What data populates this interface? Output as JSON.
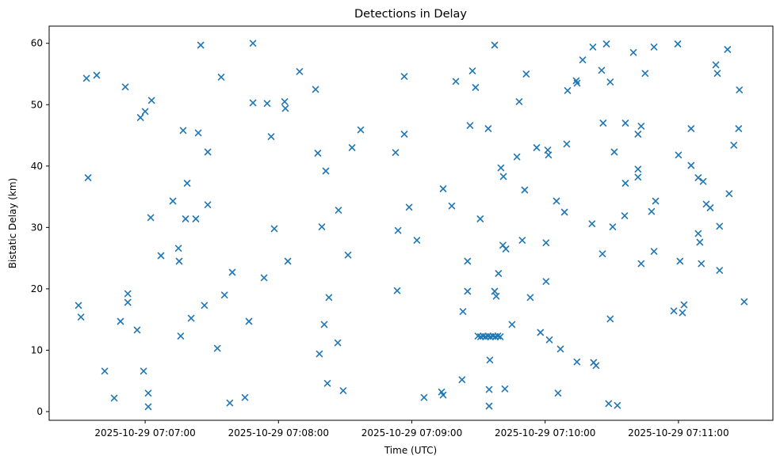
{
  "figure": {
    "title": "Detections in Delay",
    "xlabel": "Time (UTC)",
    "ylabel": "Bistatic Delay (km)"
  },
  "chart_data": {
    "type": "scatter",
    "title": "Detections in Delay",
    "xlabel": "Time (UTC)",
    "ylabel": "Bistatic Delay (km)",
    "legend": "none",
    "grid": false,
    "marker": "x",
    "marker_color": "#1f77b4",
    "x_unit": "seconds after 2025-10-29 07:07:00 UTC",
    "x_range": [
      -43.2,
      282.5
    ],
    "y_range": [
      -1.42,
      62.8
    ],
    "x_ticks": [
      {
        "value": 0,
        "label": "2025-10-29 07:07:00"
      },
      {
        "value": 60,
        "label": "2025-10-29 07:08:00"
      },
      {
        "value": 120,
        "label": "2025-10-29 07:09:00"
      },
      {
        "value": 180,
        "label": "2025-10-29 07:10:00"
      },
      {
        "value": 240,
        "label": "2025-10-29 07:11:00"
      }
    ],
    "y_ticks": [
      0,
      10,
      20,
      30,
      40,
      50,
      60
    ],
    "points": [
      [
        25.0,
        59.7
      ],
      [
        -26.4,
        54.3
      ],
      [
        -21.8,
        54.8
      ],
      [
        -8.9,
        52.9
      ],
      [
        34.2,
        54.5
      ],
      [
        2.9,
        50.7
      ],
      [
        0.0,
        48.9
      ],
      [
        -2.1,
        47.9
      ],
      [
        17.1,
        45.8
      ],
      [
        23.9,
        45.4
      ],
      [
        28.2,
        42.3
      ],
      [
        48.5,
        60.0
      ],
      [
        69.5,
        55.4
      ],
      [
        76.7,
        52.5
      ],
      [
        116.6,
        54.6
      ],
      [
        48.5,
        50.3
      ],
      [
        54.9,
        50.2
      ],
      [
        62.8,
        50.5
      ],
      [
        63.1,
        49.4
      ],
      [
        77.7,
        42.1
      ],
      [
        97.0,
        45.9
      ],
      [
        116.6,
        45.2
      ],
      [
        56.7,
        44.8
      ],
      [
        93.1,
        43.0
      ],
      [
        112.7,
        42.2
      ],
      [
        157.3,
        59.7
      ],
      [
        196.9,
        57.3
      ],
      [
        201.5,
        59.4
      ],
      [
        147.3,
        55.5
      ],
      [
        171.5,
        55.0
      ],
      [
        139.8,
        53.8
      ],
      [
        148.7,
        52.8
      ],
      [
        194.0,
        53.9
      ],
      [
        194.4,
        53.5
      ],
      [
        190.1,
        52.3
      ],
      [
        168.3,
        50.5
      ],
      [
        146.2,
        46.6
      ],
      [
        154.4,
        46.1
      ],
      [
        176.2,
        43.0
      ],
      [
        181.2,
        42.6
      ],
      [
        181.5,
        41.8
      ],
      [
        189.7,
        43.6
      ],
      [
        167.3,
        41.5
      ],
      [
        207.6,
        59.9
      ],
      [
        219.7,
        58.5
      ],
      [
        229.0,
        59.4
      ],
      [
        239.7,
        59.9
      ],
      [
        262.1,
        59.0
      ],
      [
        205.4,
        55.6
      ],
      [
        209.3,
        53.7
      ],
      [
        225.0,
        55.1
      ],
      [
        256.8,
        56.5
      ],
      [
        257.5,
        55.1
      ],
      [
        267.4,
        52.4
      ],
      [
        206.1,
        47.0
      ],
      [
        216.1,
        47.0
      ],
      [
        223.2,
        46.5
      ],
      [
        221.8,
        45.2
      ],
      [
        245.7,
        46.1
      ],
      [
        267.1,
        46.1
      ],
      [
        264.9,
        43.4
      ],
      [
        211.1,
        42.3
      ],
      [
        -25.7,
        38.1
      ],
      [
        18.9,
        37.2
      ],
      [
        12.5,
        34.3
      ],
      [
        28.2,
        33.7
      ],
      [
        2.5,
        31.6
      ],
      [
        18.2,
        31.4
      ],
      [
        22.8,
        31.4
      ],
      [
        7.1,
        25.4
      ],
      [
        15.0,
        26.6
      ],
      [
        15.3,
        24.5
      ],
      [
        81.3,
        39.2
      ],
      [
        87.0,
        32.8
      ],
      [
        118.8,
        33.3
      ],
      [
        58.1,
        29.8
      ],
      [
        79.5,
        30.1
      ],
      [
        113.8,
        29.5
      ],
      [
        91.3,
        25.5
      ],
      [
        64.2,
        24.5
      ],
      [
        39.2,
        22.7
      ],
      [
        53.5,
        21.8
      ],
      [
        160.1,
        39.7
      ],
      [
        161.2,
        38.3
      ],
      [
        134.1,
        36.3
      ],
      [
        170.8,
        36.1
      ],
      [
        138.0,
        33.5
      ],
      [
        185.1,
        34.3
      ],
      [
        188.7,
        32.5
      ],
      [
        150.8,
        31.4
      ],
      [
        122.3,
        27.9
      ],
      [
        169.7,
        27.9
      ],
      [
        180.4,
        27.5
      ],
      [
        161.0,
        27.1
      ],
      [
        162.3,
        26.5
      ],
      [
        145.1,
        24.5
      ],
      [
        159.0,
        22.5
      ],
      [
        180.4,
        21.2
      ],
      [
        201.1,
        30.6
      ],
      [
        240.0,
        41.8
      ],
      [
        245.7,
        40.1
      ],
      [
        221.8,
        39.5
      ],
      [
        221.8,
        38.2
      ],
      [
        216.1,
        37.2
      ],
      [
        248.9,
        38.1
      ],
      [
        251.1,
        37.5
      ],
      [
        262.8,
        35.5
      ],
      [
        252.5,
        33.8
      ],
      [
        254.3,
        33.2
      ],
      [
        229.7,
        34.3
      ],
      [
        227.9,
        32.6
      ],
      [
        215.8,
        31.9
      ],
      [
        210.4,
        30.1
      ],
      [
        258.5,
        30.2
      ],
      [
        248.9,
        29.0
      ],
      [
        249.6,
        27.6
      ],
      [
        205.8,
        25.7
      ],
      [
        229.0,
        26.1
      ],
      [
        223.2,
        24.1
      ],
      [
        240.7,
        24.5
      ],
      [
        250.3,
        24.1
      ],
      [
        258.5,
        23.0
      ],
      [
        -7.8,
        19.2
      ],
      [
        -7.8,
        17.8
      ],
      [
        -30.0,
        17.3
      ],
      [
        -28.9,
        15.4
      ],
      [
        -11.1,
        14.7
      ],
      [
        -3.6,
        13.3
      ],
      [
        26.7,
        17.3
      ],
      [
        20.7,
        15.2
      ],
      [
        35.7,
        19.0
      ],
      [
        16.0,
        12.3
      ],
      [
        32.5,
        10.3
      ],
      [
        -18.2,
        6.6
      ],
      [
        -0.7,
        6.6
      ],
      [
        -13.9,
        2.2
      ],
      [
        1.4,
        3.0
      ],
      [
        1.4,
        0.8
      ],
      [
        113.4,
        19.7
      ],
      [
        82.7,
        18.6
      ],
      [
        46.7,
        14.7
      ],
      [
        80.6,
        14.2
      ],
      [
        86.7,
        11.2
      ],
      [
        78.4,
        9.4
      ],
      [
        82.0,
        4.6
      ],
      [
        89.1,
        3.4
      ],
      [
        44.9,
        2.3
      ],
      [
        38.1,
        1.4
      ],
      [
        145.1,
        19.6
      ],
      [
        157.3,
        19.6
      ],
      [
        158.0,
        18.8
      ],
      [
        173.3,
        18.6
      ],
      [
        143.0,
        16.3
      ],
      [
        165.1,
        14.2
      ],
      [
        149.8,
        12.3
      ],
      [
        151.0,
        12.2
      ],
      [
        152.1,
        12.3
      ],
      [
        153.2,
        12.2
      ],
      [
        154.3,
        12.3
      ],
      [
        155.4,
        12.2
      ],
      [
        156.5,
        12.3
      ],
      [
        157.6,
        12.2
      ],
      [
        158.7,
        12.3
      ],
      [
        159.8,
        12.2
      ],
      [
        177.9,
        12.9
      ],
      [
        181.9,
        11.7
      ],
      [
        186.9,
        10.2
      ],
      [
        194.3,
        8.1
      ],
      [
        155.1,
        8.4
      ],
      [
        142.6,
        5.2
      ],
      [
        154.8,
        3.6
      ],
      [
        161.9,
        3.7
      ],
      [
        185.8,
        3.0
      ],
      [
        133.4,
        3.2
      ],
      [
        134.1,
        2.7
      ],
      [
        125.5,
        2.3
      ],
      [
        154.8,
        0.9
      ],
      [
        269.6,
        17.9
      ],
      [
        242.5,
        17.4
      ],
      [
        237.9,
        16.4
      ],
      [
        241.8,
        16.1
      ],
      [
        209.3,
        15.1
      ],
      [
        201.8,
        8.0
      ],
      [
        202.9,
        7.5
      ],
      [
        208.6,
        1.3
      ],
      [
        212.5,
        1.0
      ]
    ]
  }
}
